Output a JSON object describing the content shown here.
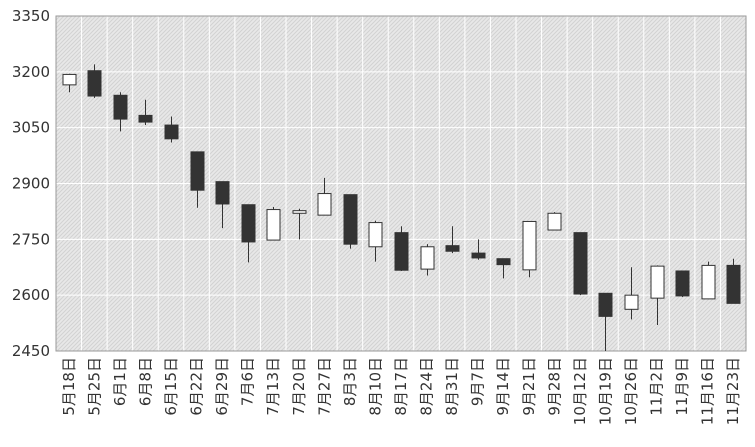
{
  "chart_data": {
    "type": "candlestick",
    "title": "",
    "xlabel": "",
    "ylabel": "",
    "ylim": [
      2450,
      3350
    ],
    "yticks": [
      2450,
      2600,
      2750,
      2900,
      3050,
      3200,
      3350
    ],
    "ytick_labels": [
      "2450",
      "2600",
      "2750",
      "2900",
      "3050",
      "3200",
      "3350"
    ],
    "grid": true,
    "colors": {
      "up": "#ffffff",
      "down": "#333333",
      "outline": "#333333",
      "plot_bg": "#e8e8e8",
      "hatch": "#d2d2d2",
      "grid": "#ffffff"
    },
    "categories": [
      "5月18日",
      "5月25日",
      "6月1日",
      "6月8日",
      "6月15日",
      "6月22日",
      "6月29日",
      "7月6日",
      "7月13日",
      "7月20日",
      "7月27日",
      "8月3日",
      "8月10日",
      "8月17日",
      "8月24日",
      "8月31日",
      "9月7日",
      "9月14日",
      "9月21日",
      "9月28日",
      "10月12日",
      "10月19日",
      "10月26日",
      "11月2日",
      "11月9日",
      "11月16日",
      "11月23日"
    ],
    "ohlc": [
      {
        "open": 3165,
        "high": 3195,
        "low": 3145,
        "close": 3193
      },
      {
        "open": 3203,
        "high": 3220,
        "low": 3130,
        "close": 3135
      },
      {
        "open": 3137,
        "high": 3145,
        "low": 3040,
        "close": 3073
      },
      {
        "open": 3083,
        "high": 3125,
        "low": 3057,
        "close": 3065
      },
      {
        "open": 3057,
        "high": 3080,
        "low": 3010,
        "close": 3020
      },
      {
        "open": 2985,
        "high": 2985,
        "low": 2835,
        "close": 2882
      },
      {
        "open": 2905,
        "high": 2905,
        "low": 2780,
        "close": 2845
      },
      {
        "open": 2843,
        "high": 2843,
        "low": 2688,
        "close": 2743
      },
      {
        "open": 2748,
        "high": 2837,
        "low": 2748,
        "close": 2830
      },
      {
        "open": 2820,
        "high": 2832,
        "low": 2750,
        "close": 2827
      },
      {
        "open": 2815,
        "high": 2915,
        "low": 2815,
        "close": 2873
      },
      {
        "open": 2870,
        "high": 2870,
        "low": 2725,
        "close": 2737
      },
      {
        "open": 2730,
        "high": 2800,
        "low": 2690,
        "close": 2795
      },
      {
        "open": 2768,
        "high": 2785,
        "low": 2665,
        "close": 2667
      },
      {
        "open": 2670,
        "high": 2737,
        "low": 2653,
        "close": 2730
      },
      {
        "open": 2733,
        "high": 2785,
        "low": 2713,
        "close": 2718
      },
      {
        "open": 2713,
        "high": 2750,
        "low": 2695,
        "close": 2700
      },
      {
        "open": 2698,
        "high": 2698,
        "low": 2645,
        "close": 2682
      },
      {
        "open": 2668,
        "high": 2798,
        "low": 2648,
        "close": 2798
      },
      {
        "open": 2775,
        "high": 2823,
        "low": 2775,
        "close": 2820
      },
      {
        "open": 2768,
        "high": 2768,
        "low": 2600,
        "close": 2603
      },
      {
        "open": 2605,
        "high": 2605,
        "low": 2450,
        "close": 2543
      },
      {
        "open": 2562,
        "high": 2675,
        "low": 2535,
        "close": 2600
      },
      {
        "open": 2592,
        "high": 2680,
        "low": 2520,
        "close": 2678
      },
      {
        "open": 2665,
        "high": 2665,
        "low": 2595,
        "close": 2598
      },
      {
        "open": 2590,
        "high": 2690,
        "low": 2590,
        "close": 2680
      },
      {
        "open": 2680,
        "high": 2698,
        "low": 2578,
        "close": 2578
      }
    ]
  }
}
